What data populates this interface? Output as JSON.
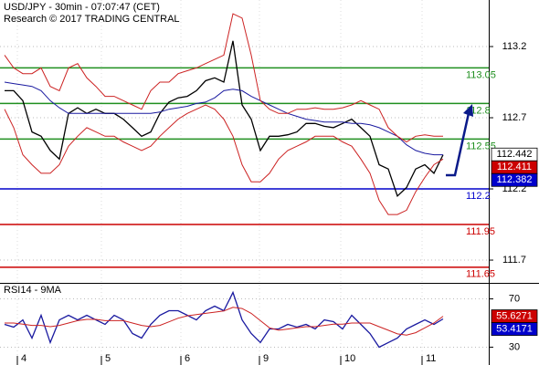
{
  "chart_data": [
    {
      "type": "line",
      "title": "USD/JPY - 30min - 07:07:47 (CET)",
      "subtitle": "Research © 2017 TRADING CENTRAL",
      "xlim": [
        -0.5,
        53
      ],
      "xticks": [
        {
          "value": 1.4,
          "label": "4"
        },
        {
          "value": 10.6,
          "label": "5"
        },
        {
          "value": 19.3,
          "label": "6"
        },
        {
          "value": 27.9,
          "label": "9"
        },
        {
          "value": 36.8,
          "label": "10"
        },
        {
          "value": 45.7,
          "label": "11"
        }
      ],
      "ylim": [
        111.54,
        113.527
      ],
      "yticks": [
        113.2,
        112.7,
        112.2,
        111.7
      ],
      "grid": true,
      "series": [
        {
          "color": "#000000",
          "values": [
            112.89,
            112.89,
            112.82,
            112.6,
            112.57,
            112.47,
            112.41,
            112.73,
            112.77,
            112.73,
            112.76,
            112.73,
            112.73,
            112.69,
            112.63,
            112.57,
            112.6,
            112.73,
            112.81,
            112.84,
            112.85,
            112.89,
            112.96,
            112.98,
            112.95,
            113.24,
            112.79,
            112.69,
            112.47,
            112.57,
            112.57,
            112.58,
            112.6,
            112.66,
            112.66,
            112.64,
            112.63,
            112.66,
            112.69,
            112.63,
            112.57,
            112.37,
            112.34,
            112.15,
            112.21,
            112.34,
            112.37,
            112.31,
            112.44
          ]
        },
        {
          "color": "#1a1aa0",
          "values": [
            112.95,
            112.94,
            112.93,
            112.92,
            112.89,
            112.82,
            112.77,
            112.73,
            112.73,
            112.73,
            112.73,
            112.73,
            112.73,
            112.73,
            112.73,
            112.73,
            112.73,
            112.74,
            112.76,
            112.77,
            112.78,
            112.8,
            112.81,
            112.84,
            112.89,
            112.9,
            112.89,
            112.85,
            112.82,
            112.79,
            112.76,
            112.73,
            112.71,
            112.69,
            112.68,
            112.67,
            112.67,
            112.67,
            112.66,
            112.66,
            112.65,
            112.63,
            112.6,
            112.57,
            112.51,
            112.47,
            112.45,
            112.44,
            112.44
          ]
        },
        {
          "color": "#cc2222",
          "values": [
            113.14,
            113.05,
            113.01,
            113.01,
            113.05,
            112.92,
            112.89,
            113.05,
            113.08,
            112.98,
            112.92,
            112.85,
            112.85,
            112.82,
            112.79,
            112.76,
            112.89,
            112.95,
            112.95,
            113.01,
            113.03,
            113.05,
            113.08,
            113.11,
            113.14,
            113.43,
            113.4,
            113.14,
            112.82,
            112.76,
            112.73,
            112.73,
            112.76,
            112.76,
            112.77,
            112.76,
            112.76,
            112.77,
            112.79,
            112.82,
            112.79,
            112.76,
            112.63,
            112.57,
            112.53,
            112.57,
            112.58,
            112.57,
            112.57
          ]
        },
        {
          "color": "#cc2222",
          "values": [
            112.76,
            112.63,
            112.44,
            112.37,
            112.31,
            112.31,
            112.37,
            112.5,
            112.57,
            112.63,
            112.6,
            112.57,
            112.57,
            112.53,
            112.5,
            112.47,
            112.5,
            112.57,
            112.63,
            112.69,
            112.73,
            112.76,
            112.79,
            112.76,
            112.69,
            112.57,
            112.37,
            112.25,
            112.25,
            112.31,
            112.41,
            112.47,
            112.5,
            112.53,
            112.57,
            112.57,
            112.57,
            112.53,
            112.5,
            112.41,
            112.31,
            112.12,
            112.02,
            112.02,
            112.05,
            112.18,
            112.28,
            112.37,
            112.41
          ]
        }
      ],
      "levels": [
        {
          "value": 113.05,
          "color": "#1f8f1f"
        },
        {
          "value": 112.8,
          "color": "#1f8f1f"
        },
        {
          "value": 112.55,
          "color": "#1f8f1f"
        },
        {
          "value": 112.2,
          "color": "#0000cc"
        },
        {
          "value": 111.95,
          "color": "#cc0000"
        },
        {
          "value": 111.65,
          "color": "#cc0000"
        }
      ],
      "last_values": [
        {
          "value": 112.442,
          "color": "#ffffff"
        },
        {
          "value": 112.411,
          "color": "#cc0000"
        },
        {
          "value": 112.382,
          "color": "#0000cc"
        }
      ]
    },
    {
      "type": "line",
      "title": "RSI14 - 9MA",
      "xlim": [
        -0.5,
        53
      ],
      "ylim": [
        19,
        81
      ],
      "yticks": [
        70,
        30
      ],
      "series": [
        {
          "color": "#1a1aa0",
          "values": [
            48.9,
            46.6,
            52.6,
            37.5,
            56.4,
            33.8,
            52.6,
            56.4,
            52.6,
            56.4,
            52.6,
            48.9,
            56.4,
            52.6,
            41.3,
            37.5,
            48.9,
            56.4,
            60.2,
            60.2,
            56.4,
            52.6,
            60.2,
            64.0,
            60.2,
            75.3,
            52.6,
            41.3,
            33.8,
            45.1,
            45.1,
            48.9,
            46.6,
            48.9,
            45.1,
            52.6,
            51.1,
            45.1,
            56.4,
            48.9,
            41.3,
            30.0,
            33.8,
            37.5,
            45.1,
            48.9,
            52.6,
            48.9,
            53.4
          ]
        },
        {
          "color": "#cc2222",
          "values": [
            50,
            50,
            49,
            48,
            48,
            47,
            48,
            50,
            52,
            53,
            53,
            52,
            52,
            52,
            50,
            48,
            47,
            48,
            51,
            54,
            56,
            57,
            58,
            59,
            60,
            63,
            62,
            58,
            52,
            46,
            44,
            45,
            46,
            47,
            47,
            48,
            49,
            49,
            50,
            50,
            50,
            47,
            44,
            41,
            40,
            42,
            46,
            50,
            55.6
          ]
        }
      ],
      "last_values": [
        {
          "value": 55.6271,
          "color": "#cc0000"
        },
        {
          "value": 53.4171,
          "color": "#0000cc"
        }
      ]
    }
  ]
}
